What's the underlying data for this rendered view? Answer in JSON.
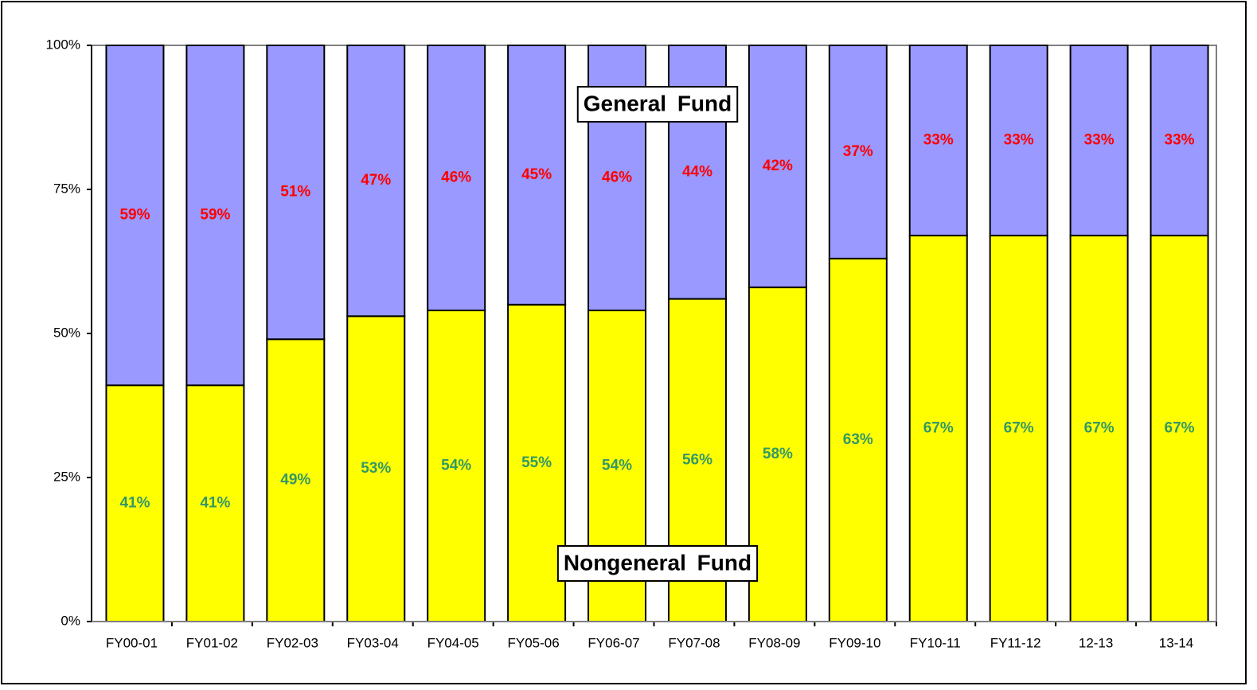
{
  "chart_data": {
    "type": "stacked-bar-100",
    "categories": [
      "FY00-01",
      "FY01-02",
      "FY02-03",
      "FY03-04",
      "FY04-05",
      "FY05-06",
      "FY06-07",
      "FY07-08",
      "FY08-09",
      "FY09-10",
      "FY10-11",
      "FY11-12",
      "12-13",
      "13-14"
    ],
    "series": [
      {
        "name": "Nongeneral Fund",
        "color": "#ffff00",
        "label_color": "#339966",
        "values": [
          41,
          41,
          49,
          53,
          54,
          55,
          54,
          56,
          58,
          63,
          67,
          67,
          67,
          67
        ],
        "value_labels": [
          "41%",
          "41%",
          "49%",
          "53%",
          "54%",
          "55%",
          "54%",
          "56%",
          "58%",
          "63%",
          "67%",
          "67%",
          "67%",
          "67%"
        ]
      },
      {
        "name": "General Fund",
        "color": "#9999ff",
        "label_color": "#ff0000",
        "values": [
          59,
          59,
          51,
          47,
          46,
          45,
          46,
          44,
          42,
          37,
          33,
          33,
          33,
          33
        ],
        "value_labels": [
          "59%",
          "59%",
          "51%",
          "47%",
          "46%",
          "45%",
          "46%",
          "44%",
          "42%",
          "37%",
          "33%",
          "33%",
          "33%",
          "33%"
        ]
      }
    ],
    "ylim": [
      0,
      100
    ],
    "yticks": [
      {
        "value": 0,
        "label": "0%"
      },
      {
        "value": 25,
        "label": "25%"
      },
      {
        "value": 50,
        "label": "50%"
      },
      {
        "value": 75,
        "label": "75%"
      },
      {
        "value": 100,
        "label": "100%"
      }
    ],
    "grid": false
  }
}
